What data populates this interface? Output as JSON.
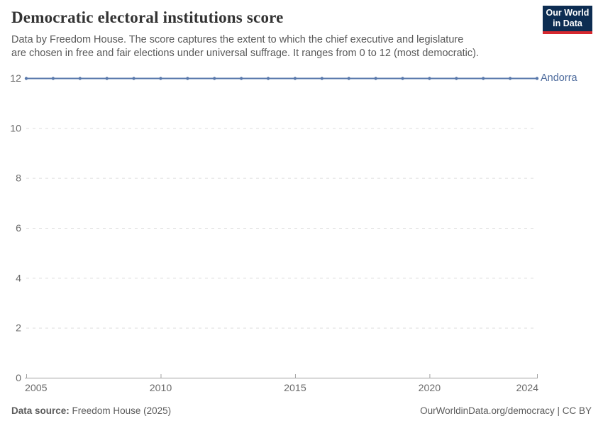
{
  "header": {
    "title": "Democratic electoral institutions score",
    "subtitle": "Data by Freedom House. The score captures the extent to which the chief executive and legislature are chosen in free and fair elections under universal suffrage. It ranges from 0 to 12 (most democratic).",
    "logo": {
      "line1": "Our World",
      "line2": "in Data",
      "bg_color": "#0d2d52",
      "accent_color": "#d6282f"
    }
  },
  "chart_data": {
    "type": "line",
    "title": "Democratic electoral institutions score",
    "xlabel": "",
    "ylabel": "",
    "xlim": [
      2005,
      2024
    ],
    "ylim": [
      0,
      12
    ],
    "x_ticks": [
      2005,
      2010,
      2015,
      2020,
      2024
    ],
    "y_ticks": [
      0,
      2,
      4,
      6,
      8,
      10,
      12
    ],
    "grid": "horizontal-dashed",
    "legend_position": "end-of-line-label",
    "series": [
      {
        "name": "Andorra",
        "color": "#5878ab",
        "x": [
          2005,
          2006,
          2007,
          2008,
          2009,
          2010,
          2011,
          2012,
          2013,
          2014,
          2015,
          2016,
          2017,
          2018,
          2019,
          2020,
          2021,
          2022,
          2023,
          2024
        ],
        "values": [
          12,
          12,
          12,
          12,
          12,
          12,
          12,
          12,
          12,
          12,
          12,
          12,
          12,
          12,
          12,
          12,
          12,
          12,
          12,
          12
        ]
      }
    ],
    "colors": {
      "grid": "#dedede",
      "axis": "#a1a1a1",
      "tick_label": "#6a6a6a"
    }
  },
  "footer": {
    "datasource_label": "Data source:",
    "datasource_value": "Freedom House (2025)",
    "attribution": "OurWorldinData.org/democracy | CC BY"
  }
}
